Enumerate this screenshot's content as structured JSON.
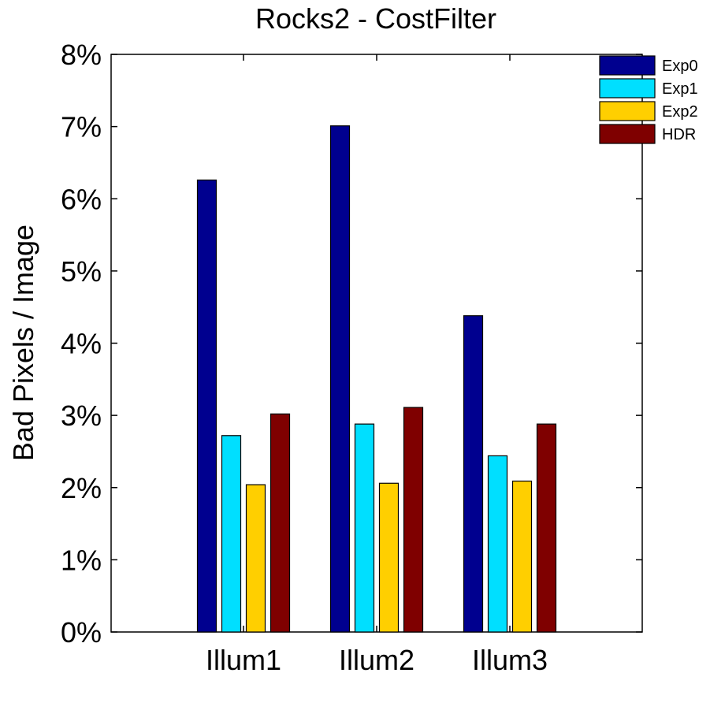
{
  "chart_data": {
    "type": "bar",
    "title": "Rocks2 - CostFilter",
    "xlabel": "",
    "ylabel": "Bad Pixels / Image",
    "categories": [
      "Illum1",
      "Illum2",
      "Illum3"
    ],
    "ylim": [
      0,
      8
    ],
    "yticks": [
      "0%",
      "1%",
      "2%",
      "3%",
      "4%",
      "5%",
      "6%",
      "7%",
      "8%"
    ],
    "y_unit": "%",
    "grid": false,
    "legend_position": "top-right",
    "series": [
      {
        "name": "Exp0",
        "color": "#00008F",
        "values": [
          6.26,
          7.01,
          4.38
        ]
      },
      {
        "name": "Exp1",
        "color": "#00DFFF",
        "values": [
          2.72,
          2.88,
          2.44
        ]
      },
      {
        "name": "Exp2",
        "color": "#FFCF00",
        "values": [
          2.04,
          2.06,
          2.09
        ]
      },
      {
        "name": "HDR",
        "color": "#7F0000",
        "values": [
          3.02,
          3.11,
          2.88
        ]
      }
    ]
  }
}
